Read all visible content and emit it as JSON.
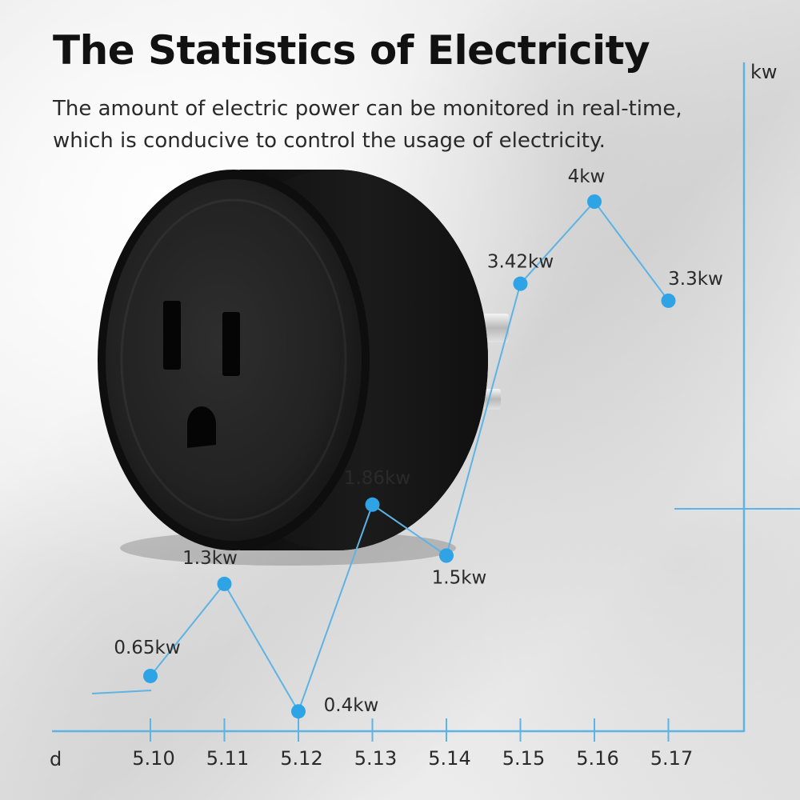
{
  "header": {
    "title": "The Statistics of Electricity",
    "subtitle_lines": [
      "The amount of electric power can be monitored in real-time,",
      "which is conducive to control the usage of electricity."
    ]
  },
  "colors": {
    "line": "#5cb3e4",
    "point": "#2ea3e6",
    "axis": "#5cb3e4",
    "device_body": "#1c1c1c"
  },
  "icons": [
    "smart-plug-device"
  ],
  "chart_data": {
    "type": "line",
    "xlabel": "d",
    "ylabel": "kw",
    "categories": [
      "5.10",
      "5.11",
      "5.12",
      "5.13",
      "5.14",
      "5.15",
      "5.16",
      "5.17"
    ],
    "values": [
      0.65,
      1.3,
      0.4,
      1.86,
      1.5,
      3.42,
      4,
      3.3
    ],
    "data_labels": [
      "0.65kw",
      "1.3kw",
      "0.4kw",
      "1.86kw",
      "1.5kw",
      "3.42kw",
      "4kw",
      "3.3kw"
    ],
    "ylim": [
      0,
      4.5
    ],
    "grid": false,
    "legend": "none"
  }
}
